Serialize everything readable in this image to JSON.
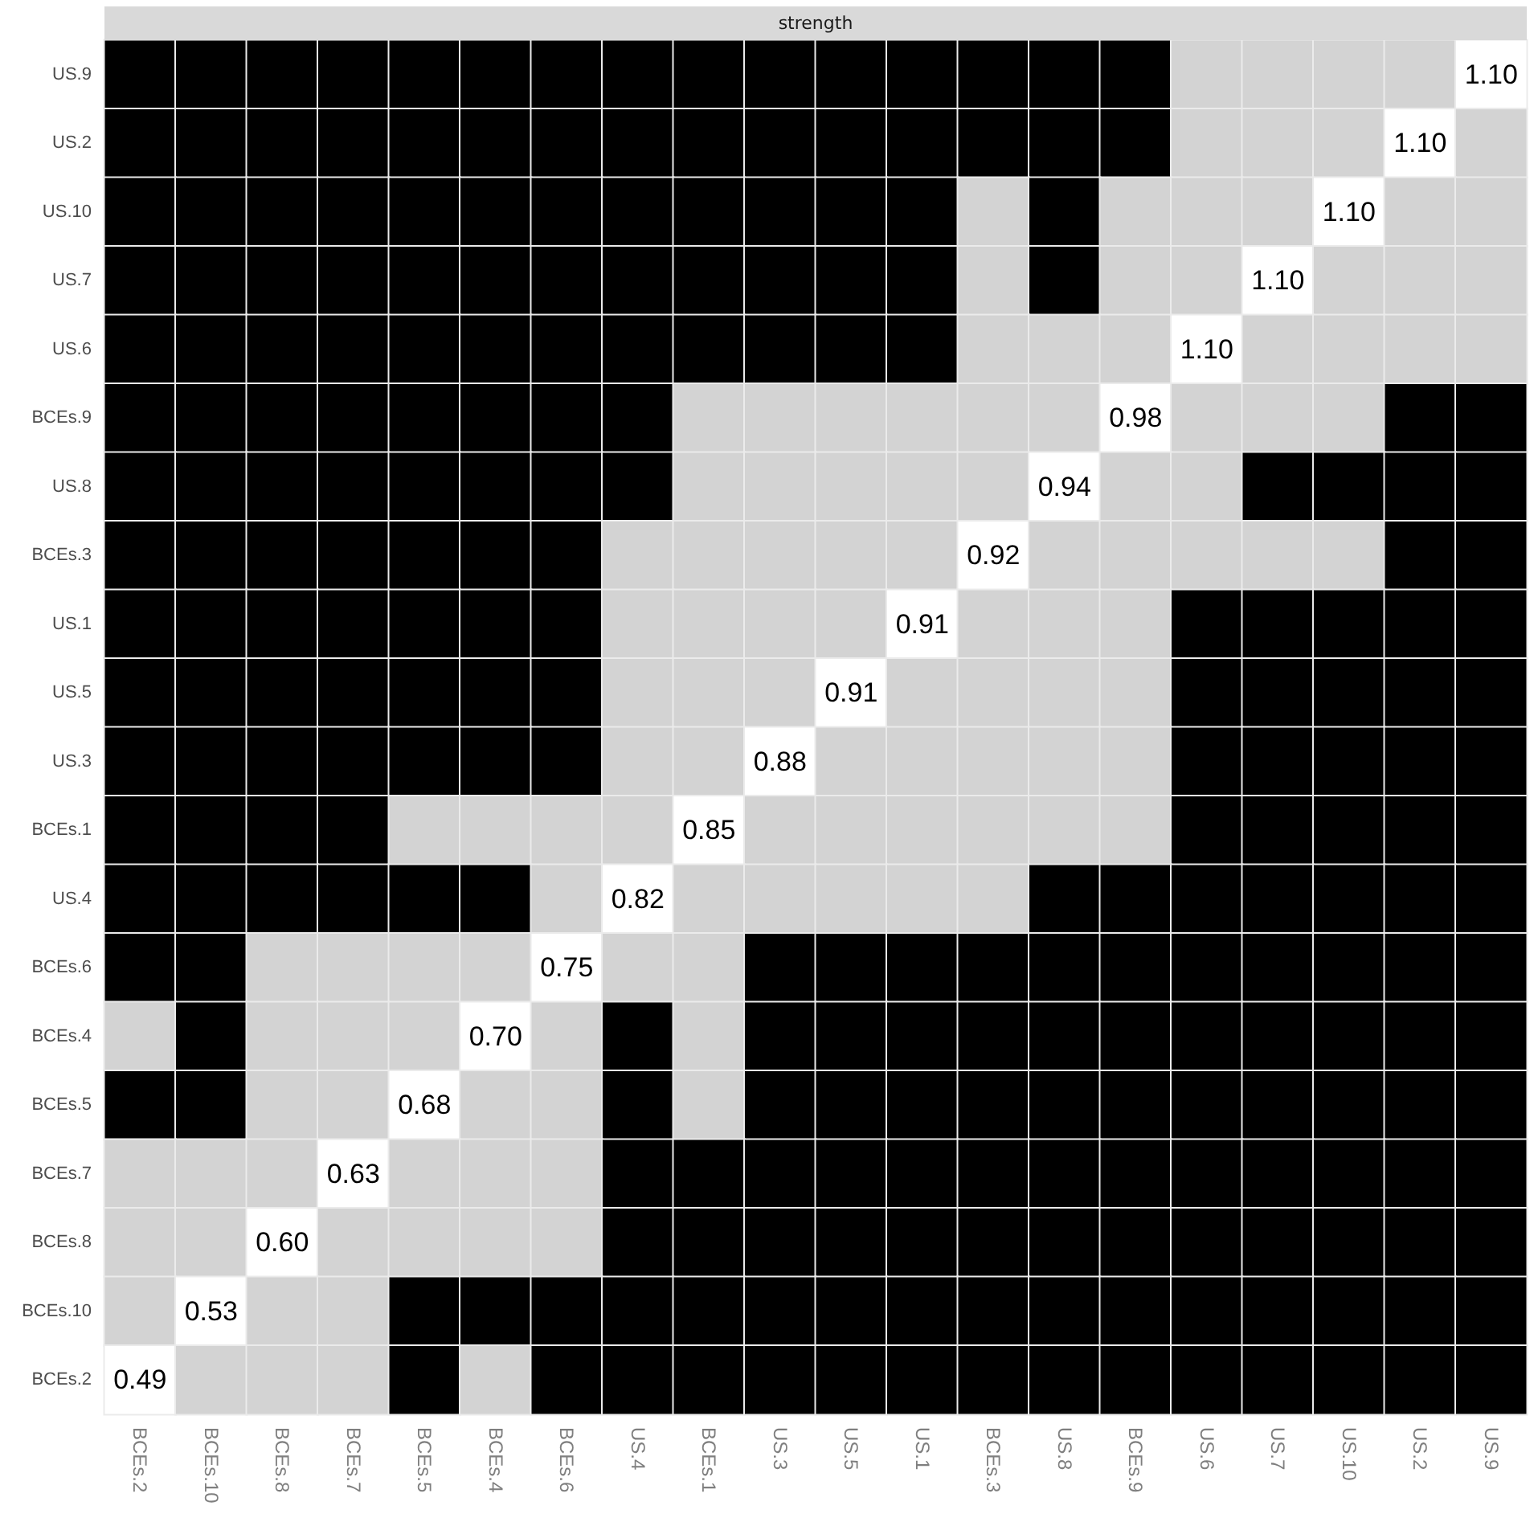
{
  "chart_data": {
    "type": "heatmap",
    "title": "strength",
    "categories": [
      "BCEs.2",
      "BCEs.10",
      "BCEs.8",
      "BCEs.7",
      "BCEs.5",
      "BCEs.4",
      "BCEs.6",
      "US.4",
      "BCEs.1",
      "US.3",
      "US.5",
      "US.1",
      "BCEs.3",
      "US.8",
      "BCEs.9",
      "US.6",
      "US.7",
      "US.10",
      "US.2",
      "US.9"
    ],
    "y_categories": [
      "US.9",
      "US.2",
      "US.10",
      "US.7",
      "US.6",
      "BCEs.9",
      "US.8",
      "BCEs.3",
      "US.1",
      "US.5",
      "US.3",
      "BCEs.1",
      "US.4",
      "BCEs.6",
      "BCEs.4",
      "BCEs.5",
      "BCEs.7",
      "BCEs.8",
      "BCEs.10",
      "BCEs.2"
    ],
    "cells": [
      [
        true,
        true,
        true,
        true,
        true,
        true,
        true,
        true,
        true,
        true,
        true,
        true,
        true,
        true,
        true,
        false,
        false,
        false,
        false,
        1.1
      ],
      [
        true,
        true,
        true,
        true,
        true,
        true,
        true,
        true,
        true,
        true,
        true,
        true,
        true,
        true,
        true,
        false,
        false,
        false,
        1.1,
        false
      ],
      [
        true,
        true,
        true,
        true,
        true,
        true,
        true,
        true,
        true,
        true,
        true,
        true,
        false,
        true,
        false,
        false,
        false,
        1.1,
        false,
        false
      ],
      [
        true,
        true,
        true,
        true,
        true,
        true,
        true,
        true,
        true,
        true,
        true,
        true,
        false,
        true,
        false,
        false,
        1.1,
        false,
        false,
        false
      ],
      [
        true,
        true,
        true,
        true,
        true,
        true,
        true,
        true,
        true,
        true,
        true,
        true,
        false,
        false,
        false,
        1.1,
        false,
        false,
        false,
        false
      ],
      [
        true,
        true,
        true,
        true,
        true,
        true,
        true,
        true,
        false,
        false,
        false,
        false,
        false,
        false,
        0.98,
        false,
        false,
        false,
        true,
        true
      ],
      [
        true,
        true,
        true,
        true,
        true,
        true,
        true,
        true,
        false,
        false,
        false,
        false,
        false,
        0.94,
        false,
        false,
        true,
        true,
        true,
        true
      ],
      [
        true,
        true,
        true,
        true,
        true,
        true,
        true,
        false,
        false,
        false,
        false,
        false,
        0.92,
        false,
        false,
        false,
        false,
        false,
        true,
        true
      ],
      [
        true,
        true,
        true,
        true,
        true,
        true,
        true,
        false,
        false,
        false,
        false,
        0.91,
        false,
        false,
        false,
        true,
        true,
        true,
        true,
        true
      ],
      [
        true,
        true,
        true,
        true,
        true,
        true,
        true,
        false,
        false,
        false,
        0.91,
        false,
        false,
        false,
        false,
        true,
        true,
        true,
        true,
        true
      ],
      [
        true,
        true,
        true,
        true,
        true,
        true,
        true,
        false,
        false,
        0.88,
        false,
        false,
        false,
        false,
        false,
        true,
        true,
        true,
        true,
        true
      ],
      [
        true,
        true,
        true,
        true,
        false,
        false,
        false,
        false,
        0.85,
        false,
        false,
        false,
        false,
        false,
        false,
        true,
        true,
        true,
        true,
        true
      ],
      [
        true,
        true,
        true,
        true,
        true,
        true,
        false,
        0.82,
        false,
        false,
        false,
        false,
        false,
        true,
        true,
        true,
        true,
        true,
        true,
        true
      ],
      [
        true,
        true,
        false,
        false,
        false,
        false,
        0.75,
        false,
        false,
        true,
        true,
        true,
        true,
        true,
        true,
        true,
        true,
        true,
        true,
        true
      ],
      [
        false,
        true,
        false,
        false,
        false,
        0.7,
        false,
        true,
        false,
        true,
        true,
        true,
        true,
        true,
        true,
        true,
        true,
        true,
        true,
        true
      ],
      [
        true,
        true,
        false,
        false,
        0.68,
        false,
        false,
        true,
        false,
        true,
        true,
        true,
        true,
        true,
        true,
        true,
        true,
        true,
        true,
        true
      ],
      [
        false,
        false,
        false,
        0.63,
        false,
        false,
        false,
        true,
        true,
        true,
        true,
        true,
        true,
        true,
        true,
        true,
        true,
        true,
        true,
        true
      ],
      [
        false,
        false,
        0.6,
        false,
        false,
        false,
        false,
        true,
        true,
        true,
        true,
        true,
        true,
        true,
        true,
        true,
        true,
        true,
        true,
        true
      ],
      [
        false,
        0.53,
        false,
        false,
        true,
        true,
        true,
        true,
        true,
        true,
        true,
        true,
        true,
        true,
        true,
        true,
        true,
        true,
        true,
        true
      ],
      [
        0.49,
        false,
        false,
        false,
        true,
        false,
        true,
        true,
        true,
        true,
        true,
        true,
        true,
        true,
        true,
        true,
        true,
        true,
        true,
        true
      ]
    ],
    "cell_labels": [
      [
        null,
        null,
        null,
        null,
        null,
        null,
        null,
        null,
        null,
        null,
        null,
        null,
        null,
        null,
        null,
        null,
        null,
        null,
        null,
        "1.10"
      ],
      [
        null,
        null,
        null,
        null,
        null,
        null,
        null,
        null,
        null,
        null,
        null,
        null,
        null,
        null,
        null,
        null,
        null,
        null,
        "1.10",
        null
      ],
      [
        null,
        null,
        null,
        null,
        null,
        null,
        null,
        null,
        null,
        null,
        null,
        null,
        null,
        null,
        null,
        null,
        null,
        "1.10",
        null,
        null
      ],
      [
        null,
        null,
        null,
        null,
        null,
        null,
        null,
        null,
        null,
        null,
        null,
        null,
        null,
        null,
        null,
        null,
        "1.10",
        null,
        null,
        null
      ],
      [
        null,
        null,
        null,
        null,
        null,
        null,
        null,
        null,
        null,
        null,
        null,
        null,
        null,
        null,
        null,
        "1.10",
        null,
        null,
        null,
        null
      ],
      [
        null,
        null,
        null,
        null,
        null,
        null,
        null,
        null,
        null,
        null,
        null,
        null,
        null,
        null,
        "0.98",
        null,
        null,
        null,
        null,
        null
      ],
      [
        null,
        null,
        null,
        null,
        null,
        null,
        null,
        null,
        null,
        null,
        null,
        null,
        null,
        "0.94",
        null,
        null,
        null,
        null,
        null,
        null
      ],
      [
        null,
        null,
        null,
        null,
        null,
        null,
        null,
        null,
        null,
        null,
        null,
        null,
        "0.92",
        null,
        null,
        null,
        null,
        null,
        null,
        null
      ],
      [
        null,
        null,
        null,
        null,
        null,
        null,
        null,
        null,
        null,
        null,
        null,
        "0.91",
        null,
        null,
        null,
        null,
        null,
        null,
        null,
        null
      ],
      [
        null,
        null,
        null,
        null,
        null,
        null,
        null,
        null,
        null,
        null,
        "0.91",
        null,
        null,
        null,
        null,
        null,
        null,
        null,
        null,
        null
      ],
      [
        null,
        null,
        null,
        null,
        null,
        null,
        null,
        null,
        null,
        "0.88",
        null,
        null,
        null,
        null,
        null,
        null,
        null,
        null,
        null,
        null
      ],
      [
        null,
        null,
        null,
        null,
        null,
        null,
        null,
        null,
        "0.85",
        null,
        null,
        null,
        null,
        null,
        null,
        null,
        null,
        null,
        null,
        null
      ],
      [
        null,
        null,
        null,
        null,
        null,
        null,
        null,
        "0.82",
        null,
        null,
        null,
        null,
        null,
        null,
        null,
        null,
        null,
        null,
        null,
        null
      ],
      [
        null,
        null,
        null,
        null,
        null,
        null,
        "0.75",
        null,
        null,
        null,
        null,
        null,
        null,
        null,
        null,
        null,
        null,
        null,
        null,
        null
      ],
      [
        null,
        null,
        null,
        null,
        null,
        "0.70",
        null,
        null,
        null,
        null,
        null,
        null,
        null,
        null,
        null,
        null,
        null,
        null,
        null,
        null
      ],
      [
        null,
        null,
        null,
        null,
        "0.68",
        null,
        null,
        null,
        null,
        null,
        null,
        null,
        null,
        null,
        null,
        null,
        null,
        null,
        null,
        null
      ],
      [
        null,
        null,
        null,
        "0.63",
        null,
        null,
        null,
        null,
        null,
        null,
        null,
        null,
        null,
        null,
        null,
        null,
        null,
        null,
        null,
        null
      ],
      [
        null,
        null,
        "0.60",
        null,
        null,
        null,
        null,
        null,
        null,
        null,
        null,
        null,
        null,
        null,
        null,
        null,
        null,
        null,
        null,
        null
      ],
      [
        null,
        "0.53",
        null,
        null,
        null,
        null,
        null,
        null,
        null,
        null,
        null,
        null,
        null,
        null,
        null,
        null,
        null,
        null,
        null,
        null
      ],
      [
        "0.49",
        null,
        null,
        null,
        null,
        null,
        null,
        null,
        null,
        null,
        null,
        null,
        null,
        null,
        null,
        null,
        null,
        null,
        null,
        null
      ]
    ]
  }
}
